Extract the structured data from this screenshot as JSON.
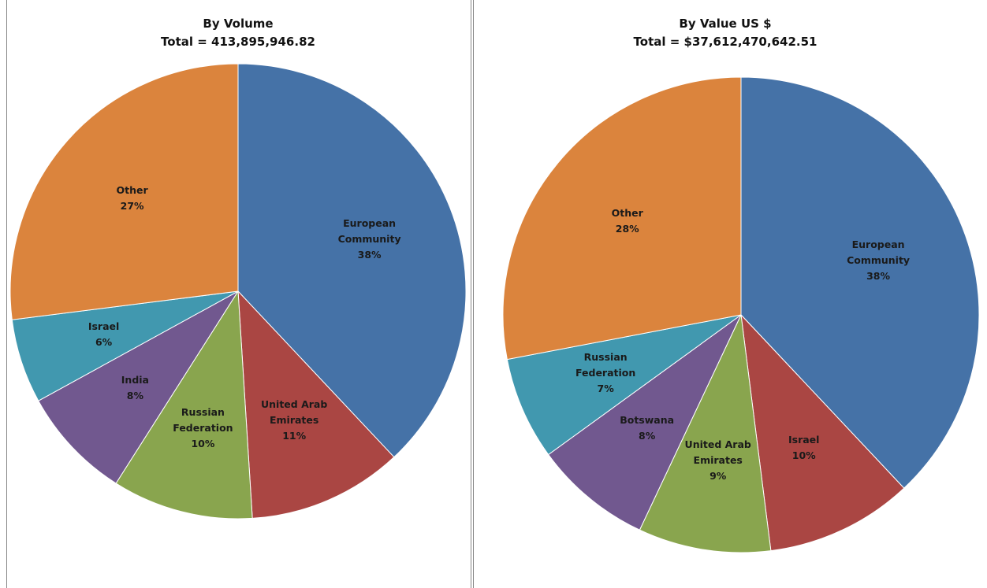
{
  "chart_data": [
    {
      "type": "pie",
      "title": "By Volume",
      "subtitle": "Total = 413,895,946.82",
      "categories": [
        "European Community",
        "United Arab Emirates",
        "Russian Federation",
        "India",
        "Israel",
        "Other"
      ],
      "values": [
        38,
        11,
        10,
        8,
        6,
        27
      ],
      "value_labels": [
        "38%",
        "11%",
        "10%",
        "8%",
        "6%",
        "27%"
      ],
      "colors": [
        "#4572a7",
        "#aa4643",
        "#89a54e",
        "#71588f",
        "#4198af",
        "#db843d"
      ]
    },
    {
      "type": "pie",
      "title": "By Value US $",
      "subtitle": "Total = $37,612,470,642.51",
      "categories": [
        "European Community",
        "Israel",
        "United Arab Emirates",
        "Botswana",
        "Russian Federation",
        "Other"
      ],
      "values": [
        38,
        10,
        9,
        8,
        7,
        28
      ],
      "value_labels": [
        "38%",
        "10%",
        "9%",
        "8%",
        "7%",
        "28%"
      ],
      "colors": [
        "#4572a7",
        "#aa4643",
        "#89a54e",
        "#71588f",
        "#4198af",
        "#db843d"
      ]
    }
  ]
}
